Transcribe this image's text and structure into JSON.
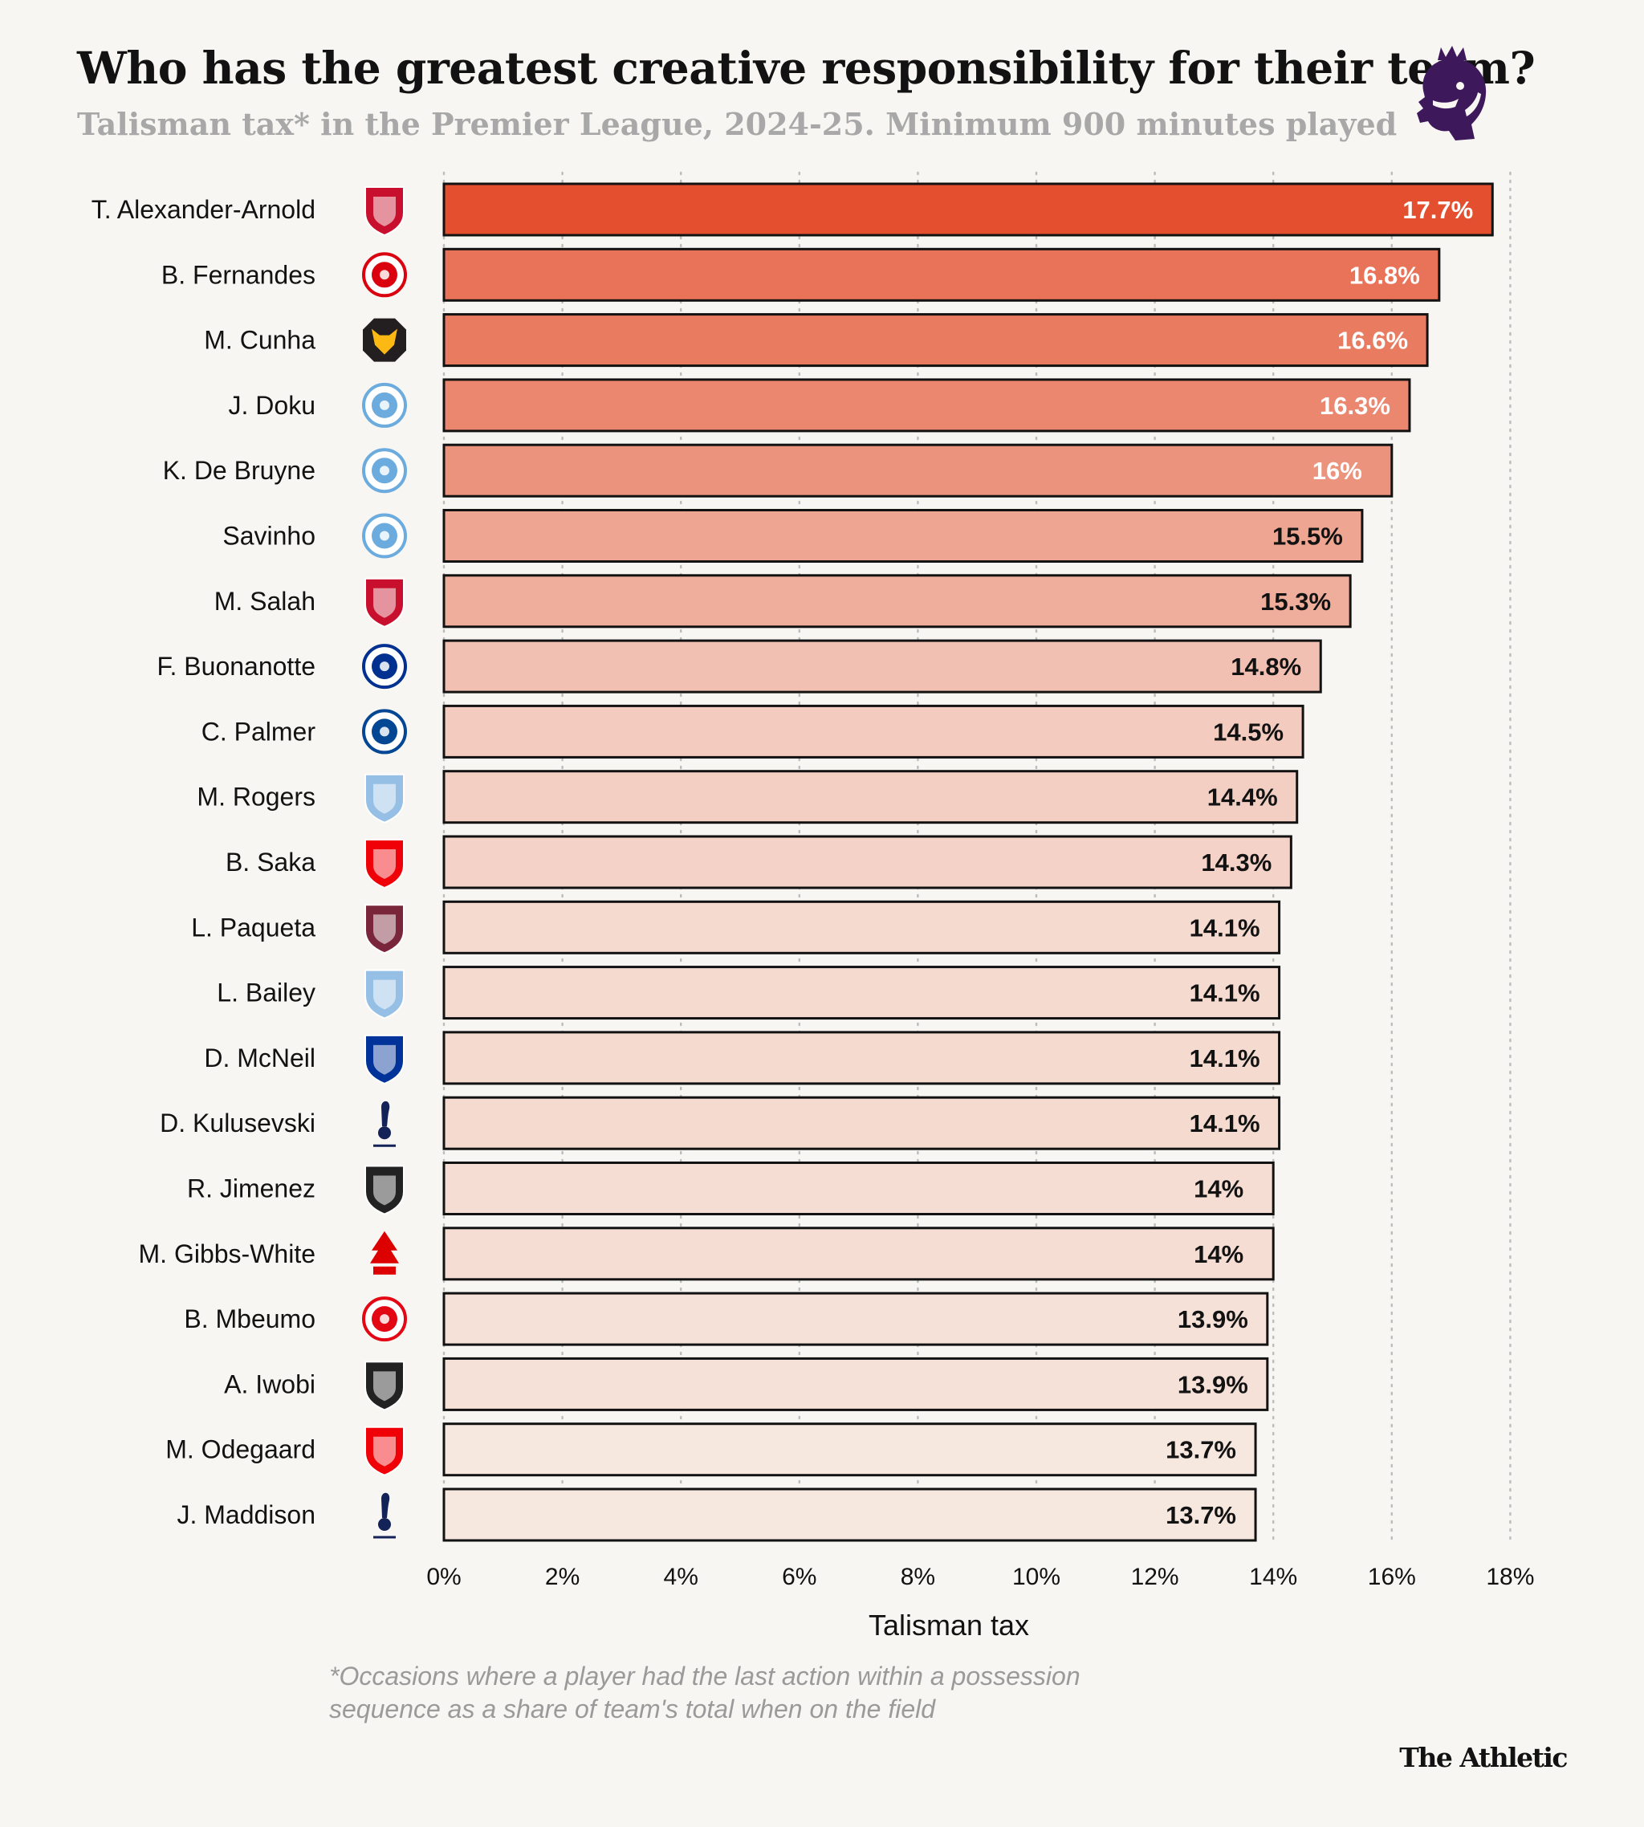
{
  "header": {
    "title": "Who has the greatest creative responsibility for their team?",
    "subtitle": "Talisman tax* in the Premier League, 2024-25. Minimum 900 minutes played"
  },
  "footnote": {
    "line1": "*Occasions where a player had the last action within a possession",
    "line2": "sequence as a share of team's total when on the field"
  },
  "brand": "The Athletic",
  "colors": {
    "background": "#f7f6f2",
    "bar_max": "#e4502f",
    "bar_min": "#f6e7df",
    "bar_stroke": "#121212",
    "league_logo": "#3d195b"
  },
  "chart_data": {
    "type": "bar",
    "orientation": "horizontal",
    "xlabel": "Talisman tax",
    "xlim": [
      0,
      18
    ],
    "xticks": [
      "0%",
      "2%",
      "4%",
      "6%",
      "8%",
      "10%",
      "12%",
      "14%",
      "16%",
      "18%"
    ],
    "grid": "vertical dotted",
    "categories": [
      "T. Alexander-Arnold",
      "B. Fernandes",
      "M. Cunha",
      "J. Doku",
      "K. De Bruyne",
      "Savinho",
      "M. Salah",
      "F. Buonanotte",
      "C. Palmer",
      "M. Rogers",
      "B. Saka",
      "L. Paqueta",
      "L. Bailey",
      "D. McNeil",
      "D. Kulusevski",
      "R. Jimenez",
      "M. Gibbs-White",
      "B. Mbeumo",
      "A. Iwobi",
      "M. Odegaard",
      "J. Maddison"
    ],
    "values": [
      17.7,
      16.8,
      16.6,
      16.3,
      16.0,
      15.5,
      15.3,
      14.8,
      14.5,
      14.4,
      14.3,
      14.1,
      14.1,
      14.1,
      14.1,
      14.0,
      14.0,
      13.9,
      13.9,
      13.7,
      13.7
    ],
    "value_labels": [
      "17.7%",
      "16.8%",
      "16.6%",
      "16.3%",
      "16%",
      "15.5%",
      "15.3%",
      "14.8%",
      "14.5%",
      "14.4%",
      "14.3%",
      "14.1%",
      "14.1%",
      "14.1%",
      "14.1%",
      "14%",
      "14%",
      "13.9%",
      "13.9%",
      "13.7%",
      "13.7%"
    ],
    "team_badges": [
      {
        "name": "liverpool-badge-icon",
        "color": "#c8102e",
        "shape": "shield"
      },
      {
        "name": "manchester-united-badge-icon",
        "color": "#da020e",
        "shape": "circle"
      },
      {
        "name": "wolves-badge-icon",
        "color": "#fdb913",
        "shape": "octagon"
      },
      {
        "name": "manchester-city-badge-icon",
        "color": "#6cabdd",
        "shape": "circle"
      },
      {
        "name": "manchester-city-badge-icon",
        "color": "#6cabdd",
        "shape": "circle"
      },
      {
        "name": "manchester-city-badge-icon",
        "color": "#6cabdd",
        "shape": "circle"
      },
      {
        "name": "liverpool-badge-icon",
        "color": "#c8102e",
        "shape": "shield"
      },
      {
        "name": "leicester-city-badge-icon",
        "color": "#003090",
        "shape": "circle"
      },
      {
        "name": "chelsea-badge-icon",
        "color": "#034694",
        "shape": "circle"
      },
      {
        "name": "aston-villa-badge-icon",
        "color": "#95bfe5",
        "shape": "shield"
      },
      {
        "name": "arsenal-badge-icon",
        "color": "#ef0107",
        "shape": "shield"
      },
      {
        "name": "west-ham-badge-icon",
        "color": "#7a263a",
        "shape": "shield"
      },
      {
        "name": "aston-villa-badge-icon",
        "color": "#95bfe5",
        "shape": "shield"
      },
      {
        "name": "everton-badge-icon",
        "color": "#003399",
        "shape": "shield"
      },
      {
        "name": "tottenham-badge-icon",
        "color": "#132257",
        "shape": "cockerel"
      },
      {
        "name": "fulham-badge-icon",
        "color": "#222222",
        "shape": "shield"
      },
      {
        "name": "nottingham-forest-badge-icon",
        "color": "#dd0000",
        "shape": "tree"
      },
      {
        "name": "brentford-badge-icon",
        "color": "#e30613",
        "shape": "circle"
      },
      {
        "name": "fulham-badge-icon",
        "color": "#222222",
        "shape": "shield"
      },
      {
        "name": "arsenal-badge-icon",
        "color": "#ef0107",
        "shape": "shield"
      },
      {
        "name": "tottenham-badge-icon",
        "color": "#132257",
        "shape": "cockerel"
      }
    ]
  }
}
